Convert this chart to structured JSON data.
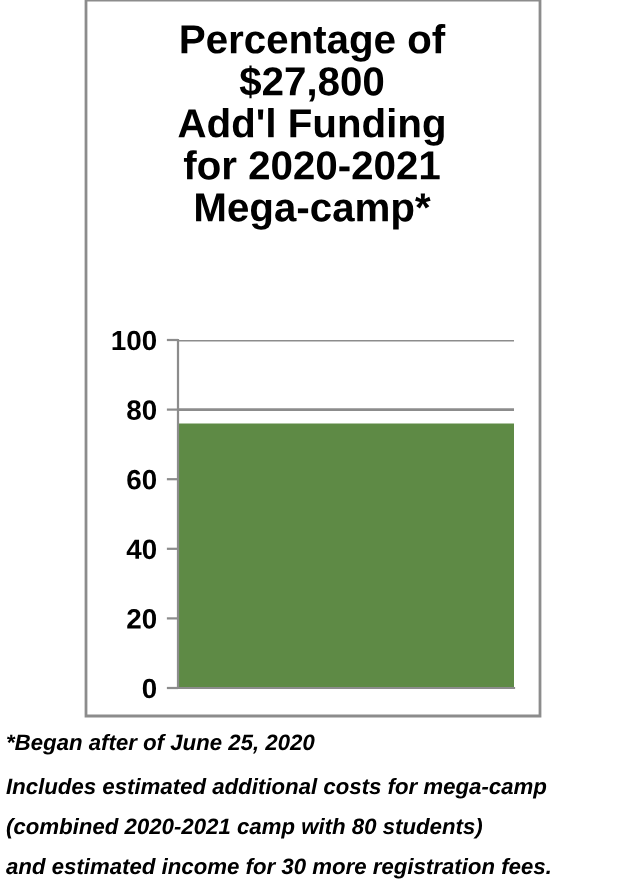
{
  "chart_data": {
    "type": "bar",
    "title": "Percentage of\n$27,800\nAdd'l Funding\nfor 2020-2021\nMega-camp*",
    "categories": [
      null
    ],
    "values": [
      76
    ],
    "color": "#5e8a45",
    "ylim": [
      0,
      100
    ],
    "yticks": [
      0,
      20,
      40,
      60,
      80,
      100
    ],
    "grid": "y",
    "annotations": [
      "*Began after of June 25, 2020",
      "Includes estimated additional costs for mega-camp",
      "(combined 2020-2021 camp with 80 students)",
      "and estimated income for 30 more registration fees."
    ]
  }
}
